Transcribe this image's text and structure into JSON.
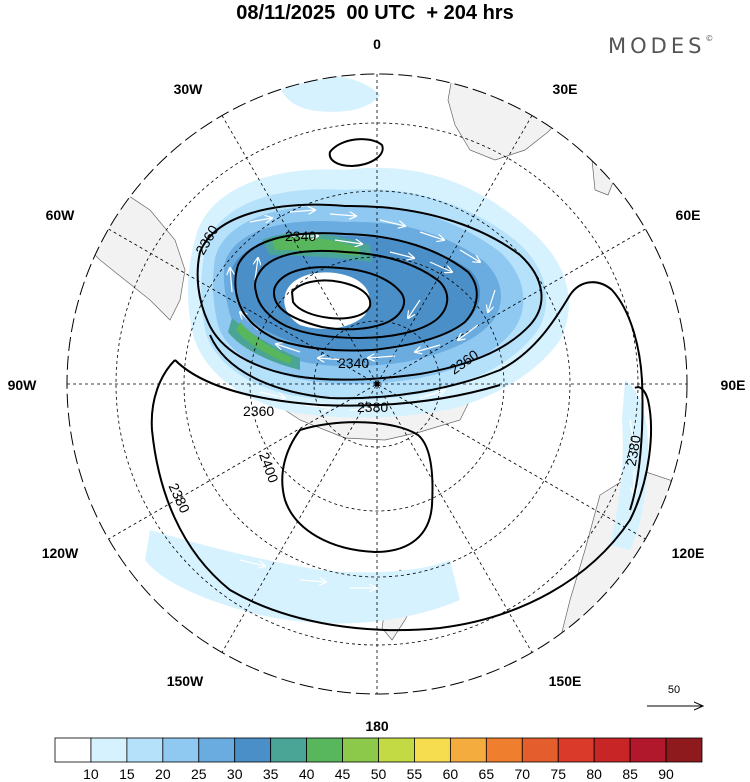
{
  "header": {
    "title": "08/11/2025  00 UTC  + 204 hrs",
    "brand": "MODES",
    "brand_mark": "©"
  },
  "map": {
    "projection": "south-polar-stereographic",
    "longitude_labels": [
      "0",
      "30E",
      "60E",
      "90E",
      "120E",
      "150E",
      "180",
      "150W",
      "120W",
      "90W",
      "60W",
      "30W"
    ],
    "contour_labels": [
      "2360",
      "2340",
      "2340",
      "2360",
      "2380",
      "2360",
      "2400",
      "2380",
      "2380"
    ],
    "contour_color": "#000000",
    "land_color": "#f2f2f2",
    "wind_vector_color": "#ffffff",
    "reference_vector": {
      "value": "50"
    }
  },
  "colorbar": {
    "labels": [
      "10",
      "15",
      "20",
      "25",
      "30",
      "35",
      "40",
      "45",
      "50",
      "55",
      "60",
      "65",
      "70",
      "75",
      "80",
      "85",
      "90"
    ],
    "colors": [
      "#ffffff",
      "#d6f2fe",
      "#b5e1fb",
      "#8fc8f1",
      "#6aacdf",
      "#4b8fc8",
      "#4aa596",
      "#58b65d",
      "#8cc84a",
      "#c3da45",
      "#f6dd4f",
      "#f4ac3f",
      "#ef7f2f",
      "#e45d2c",
      "#d93a2a",
      "#c82526",
      "#b2182b",
      "#8f1a1e"
    ]
  }
}
